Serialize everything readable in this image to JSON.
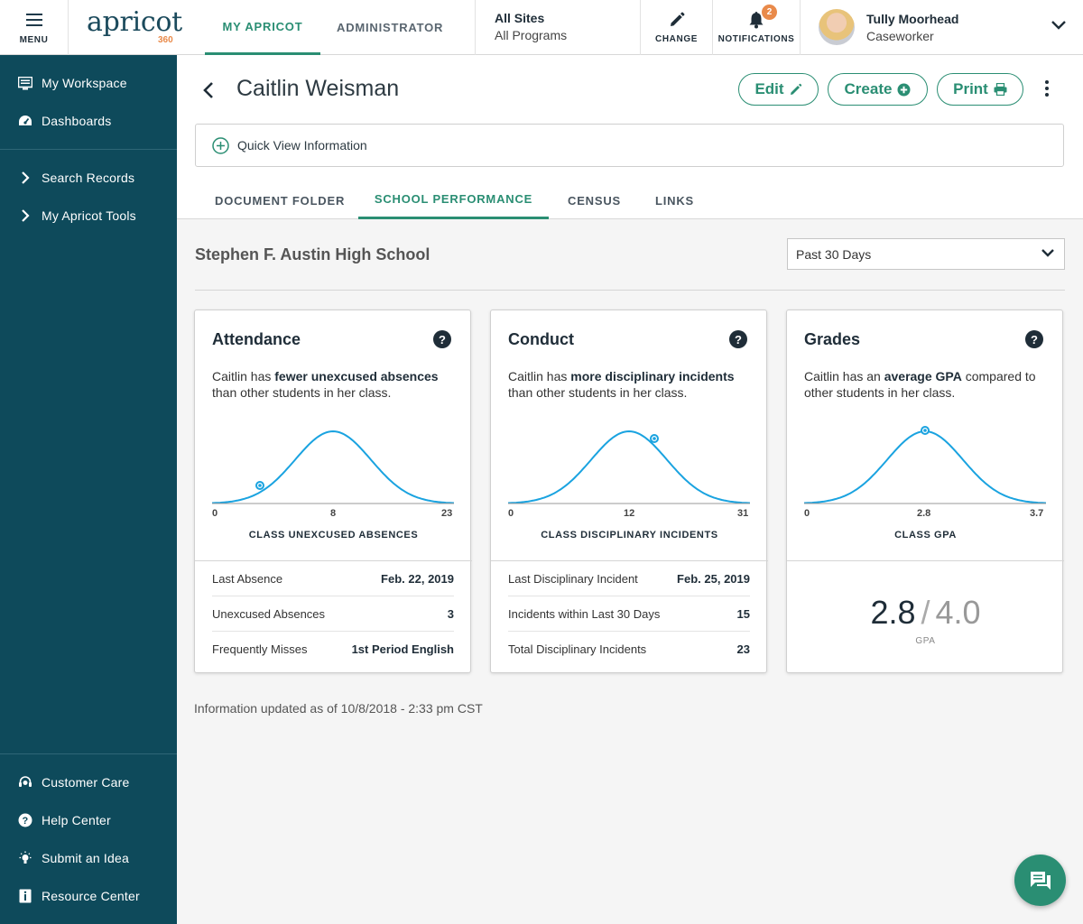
{
  "topbar": {
    "menu_label": "MENU",
    "logo_word": "apricot",
    "logo_sub": "360",
    "tabs": [
      "MY APRICOT",
      "ADMINISTRATOR"
    ],
    "site": "All Sites",
    "program": "All Programs",
    "change_label": "CHANGE",
    "notifications_label": "NOTIFICATIONS",
    "notification_count": "2",
    "user_name": "Tully Moorhead",
    "user_role": "Caseworker"
  },
  "sidebar": {
    "top_items": [
      {
        "label": "My Workspace",
        "icon": "monitor-icon"
      },
      {
        "label": "Dashboards",
        "icon": "gauge-icon"
      }
    ],
    "nav_items": [
      {
        "label": "Search Records",
        "icon": "chevron-right-icon"
      },
      {
        "label": "My Apricot Tools",
        "icon": "chevron-right-icon"
      }
    ],
    "bottom_items": [
      {
        "label": "Customer Care",
        "icon": "headset-icon"
      },
      {
        "label": "Help Center",
        "icon": "question-icon"
      },
      {
        "label": "Submit an Idea",
        "icon": "lightbulb-icon"
      },
      {
        "label": "Resource Center",
        "icon": "info-icon"
      }
    ]
  },
  "header": {
    "person_name": "Caitlin Weisman",
    "edit_label": "Edit",
    "create_label": "Create",
    "print_label": "Print",
    "quick_view": "Quick View Information",
    "tabs": [
      "DOCUMENT FOLDER",
      "SCHOOL PERFORMANCE",
      "CENSUS",
      "LINKS"
    ],
    "active_tab": "SCHOOL PERFORMANCE"
  },
  "content": {
    "school": "Stephen F. Austin High School",
    "period": "Past 30 Days",
    "updated": "Information updated as of 10/8/2018 - 2:33 pm CST"
  },
  "cards": {
    "attendance": {
      "title": "Attendance",
      "desc_pre": "Caitlin has ",
      "desc_bold": "fewer unexcused absences",
      "desc_post": " than other students in her class.",
      "tick_min": "0",
      "tick_mid": "8",
      "tick_max": "23",
      "axis": "CLASS UNEXCUSED ABSENCES",
      "rows": [
        {
          "label": "Last Absence",
          "value": "Feb. 22, 2019"
        },
        {
          "label": "Unexcused Absences",
          "value": "3"
        },
        {
          "label": "Frequently Misses",
          "value": "1st Period English"
        }
      ]
    },
    "conduct": {
      "title": "Conduct",
      "desc_pre": "Caitlin has ",
      "desc_bold": "more disciplinary incidents",
      "desc_post": " than other students in her class.",
      "tick_min": "0",
      "tick_mid": "12",
      "tick_max": "31",
      "axis": "CLASS DISCIPLINARY INCIDENTS",
      "rows": [
        {
          "label": "Last Disciplinary Incident",
          "value": "Feb. 25, 2019"
        },
        {
          "label": "Incidents within Last 30 Days",
          "value": "15"
        },
        {
          "label": "Total Disciplinary Incidents",
          "value": "23"
        }
      ]
    },
    "grades": {
      "title": "Grades",
      "desc_pre": "Caitlin has an ",
      "desc_bold": "average GPA",
      "desc_post": " compared to other students in her class.",
      "tick_min": "0",
      "tick_mid": "2.8",
      "tick_max": "3.7",
      "axis": "CLASS GPA",
      "gpa": "2.8",
      "gpa_sep": "/",
      "gpa_max": "4.0",
      "gpa_label": "GPA"
    }
  },
  "colors": {
    "accent": "#2a8e73",
    "sidebar": "#0e4a5b",
    "curve": "#1aa3e0",
    "badge": "#e98a4a"
  }
}
